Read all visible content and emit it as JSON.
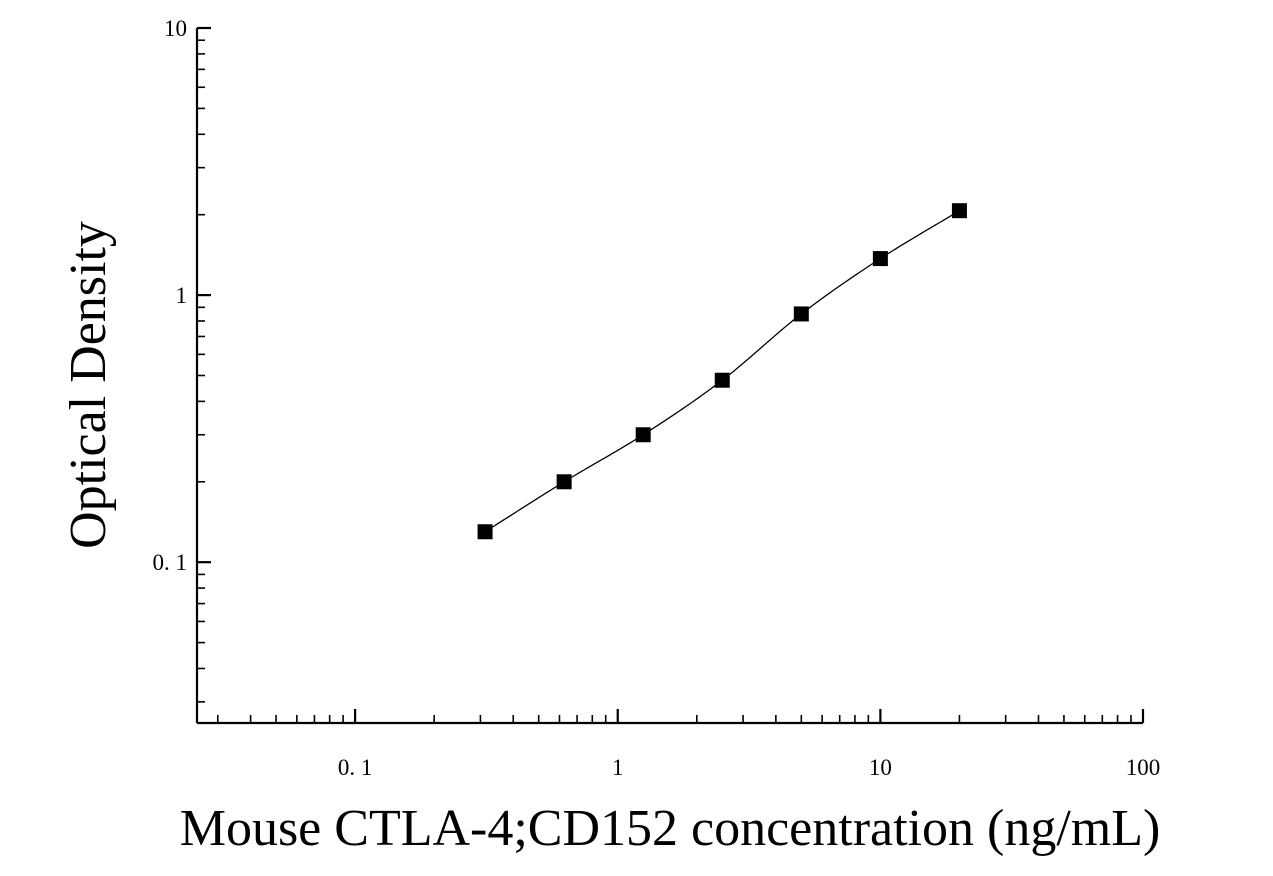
{
  "chart_data": {
    "type": "scatter",
    "title": "",
    "xlabel": "Mouse CTLA-4;CD152 concentration (ng/mL)",
    "ylabel": "Optical Density",
    "x_scale": "log",
    "y_scale": "log",
    "xlim": [
      0.025,
      100
    ],
    "ylim": [
      0.025,
      10
    ],
    "x_ticks": [
      {
        "value": 0.1,
        "label": "0. 1"
      },
      {
        "value": 1,
        "label": "1"
      },
      {
        "value": 10,
        "label": "10"
      },
      {
        "value": 100,
        "label": "100"
      }
    ],
    "y_ticks": [
      {
        "value": 0.1,
        "label": "0. 1"
      },
      {
        "value": 1,
        "label": "1"
      },
      {
        "value": 10,
        "label": "10"
      }
    ],
    "grid": false,
    "legend": "none",
    "series": [
      {
        "x": [
          0.3125,
          0.625,
          1.25,
          2.5,
          5,
          10,
          20
        ],
        "y": [
          0.13,
          0.2,
          0.3,
          0.48,
          0.85,
          1.37,
          2.07
        ],
        "marker": "square",
        "fit_curve": true
      }
    ],
    "colors": {
      "marker": "#000000",
      "axis": "#000000",
      "curve": "#000000"
    }
  }
}
